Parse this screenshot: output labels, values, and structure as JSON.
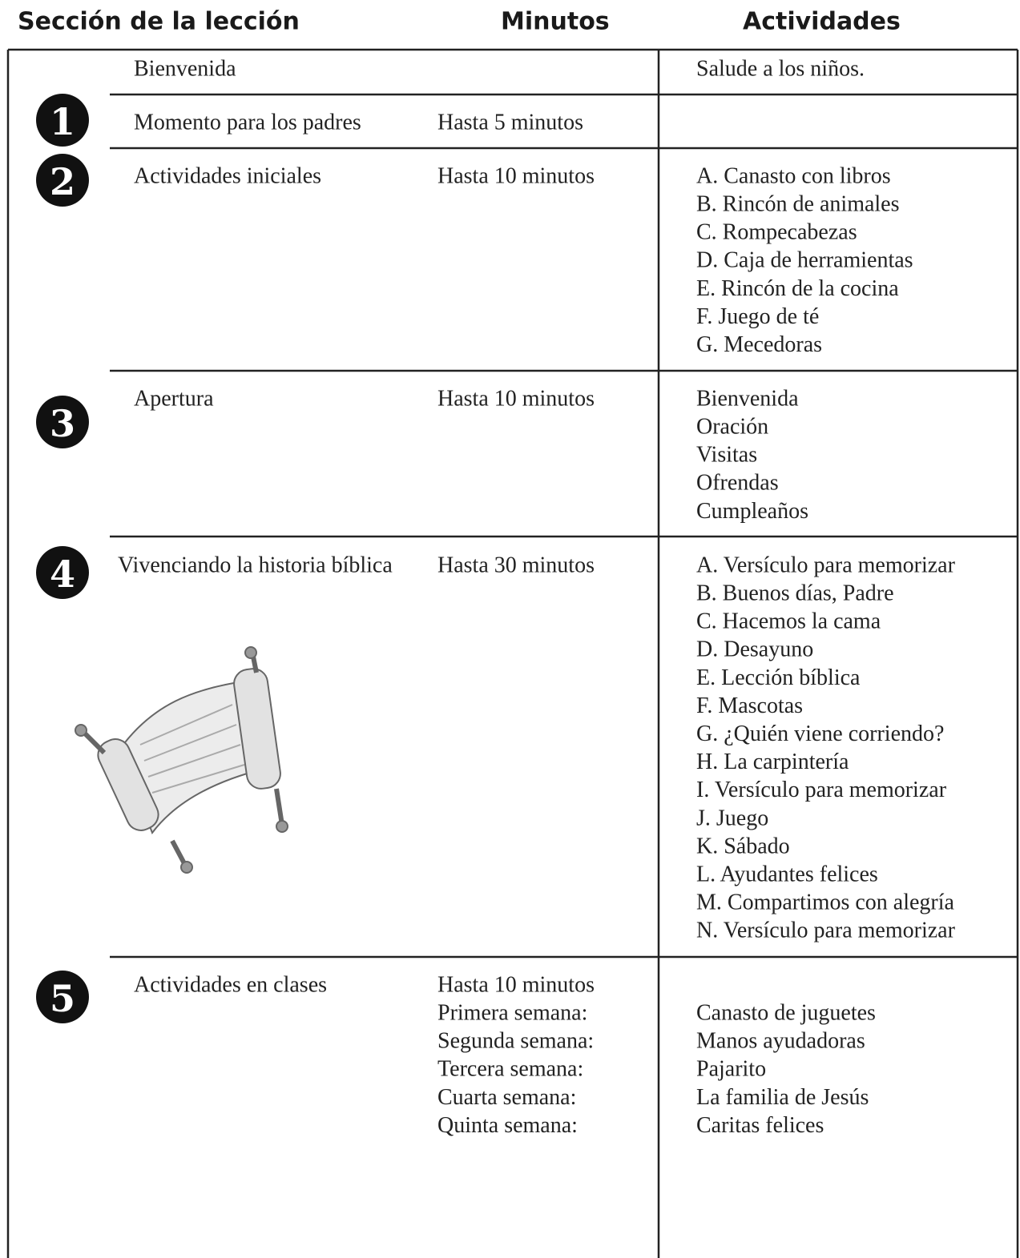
{
  "header": {
    "section": "Sección de la lección",
    "minutes": "Minutos",
    "activities": "Actividades"
  },
  "rows": [
    {
      "section": "Bienvenida",
      "activities": [
        "Salude a los niños."
      ]
    },
    {
      "number": "1",
      "section": "Momento para los padres",
      "minutes": [
        "Hasta 5 minutos"
      ]
    },
    {
      "number": "2",
      "section": "Actividades iniciales",
      "minutes": [
        "Hasta 10 minutos"
      ],
      "activities": [
        "A. Canasto con libros",
        "B. Rincón de animales",
        "C. Rompecabezas",
        "D. Caja de herramientas",
        "E. Rincón de la cocina",
        "F. Juego de té",
        "G. Mecedoras"
      ]
    },
    {
      "number": "3",
      "section": "Apertura",
      "minutes": [
        "Hasta 10 minutos"
      ],
      "activities": [
        "Bienvenida",
        "Oración",
        "Visitas",
        "Ofrendas",
        "Cumpleaños"
      ]
    },
    {
      "number": "4",
      "section": "Vivenciando la historia bíblica",
      "minutes": [
        "Hasta 30 minutos"
      ],
      "activities": [
        "A. Versículo para memorizar",
        "B. Buenos días, Padre",
        "C. Hacemos la cama",
        "D. Desayuno",
        "E. Lección bíblica",
        "F. Mascotas",
        "G. ¿Quién viene corriendo?",
        "H. La carpintería",
        "I. Versículo para memorizar",
        "J. Juego",
        "K. Sábado",
        "L. Ayudantes felices",
        "M. Compartimos con alegría",
        "N. Versículo para memorizar"
      ]
    },
    {
      "number": "5",
      "section": "Actividades en clases",
      "minutes": [
        "Hasta 10 minutos",
        "Primera semana:",
        "Segunda semana:",
        "Tercera semana:",
        "Cuarta semana:",
        "Quinta semana:"
      ],
      "activities": [
        "Canasto de juguetes",
        "Manos ayudadoras",
        "Pajarito",
        "La familia de Jesús",
        "Caritas felices"
      ]
    }
  ]
}
